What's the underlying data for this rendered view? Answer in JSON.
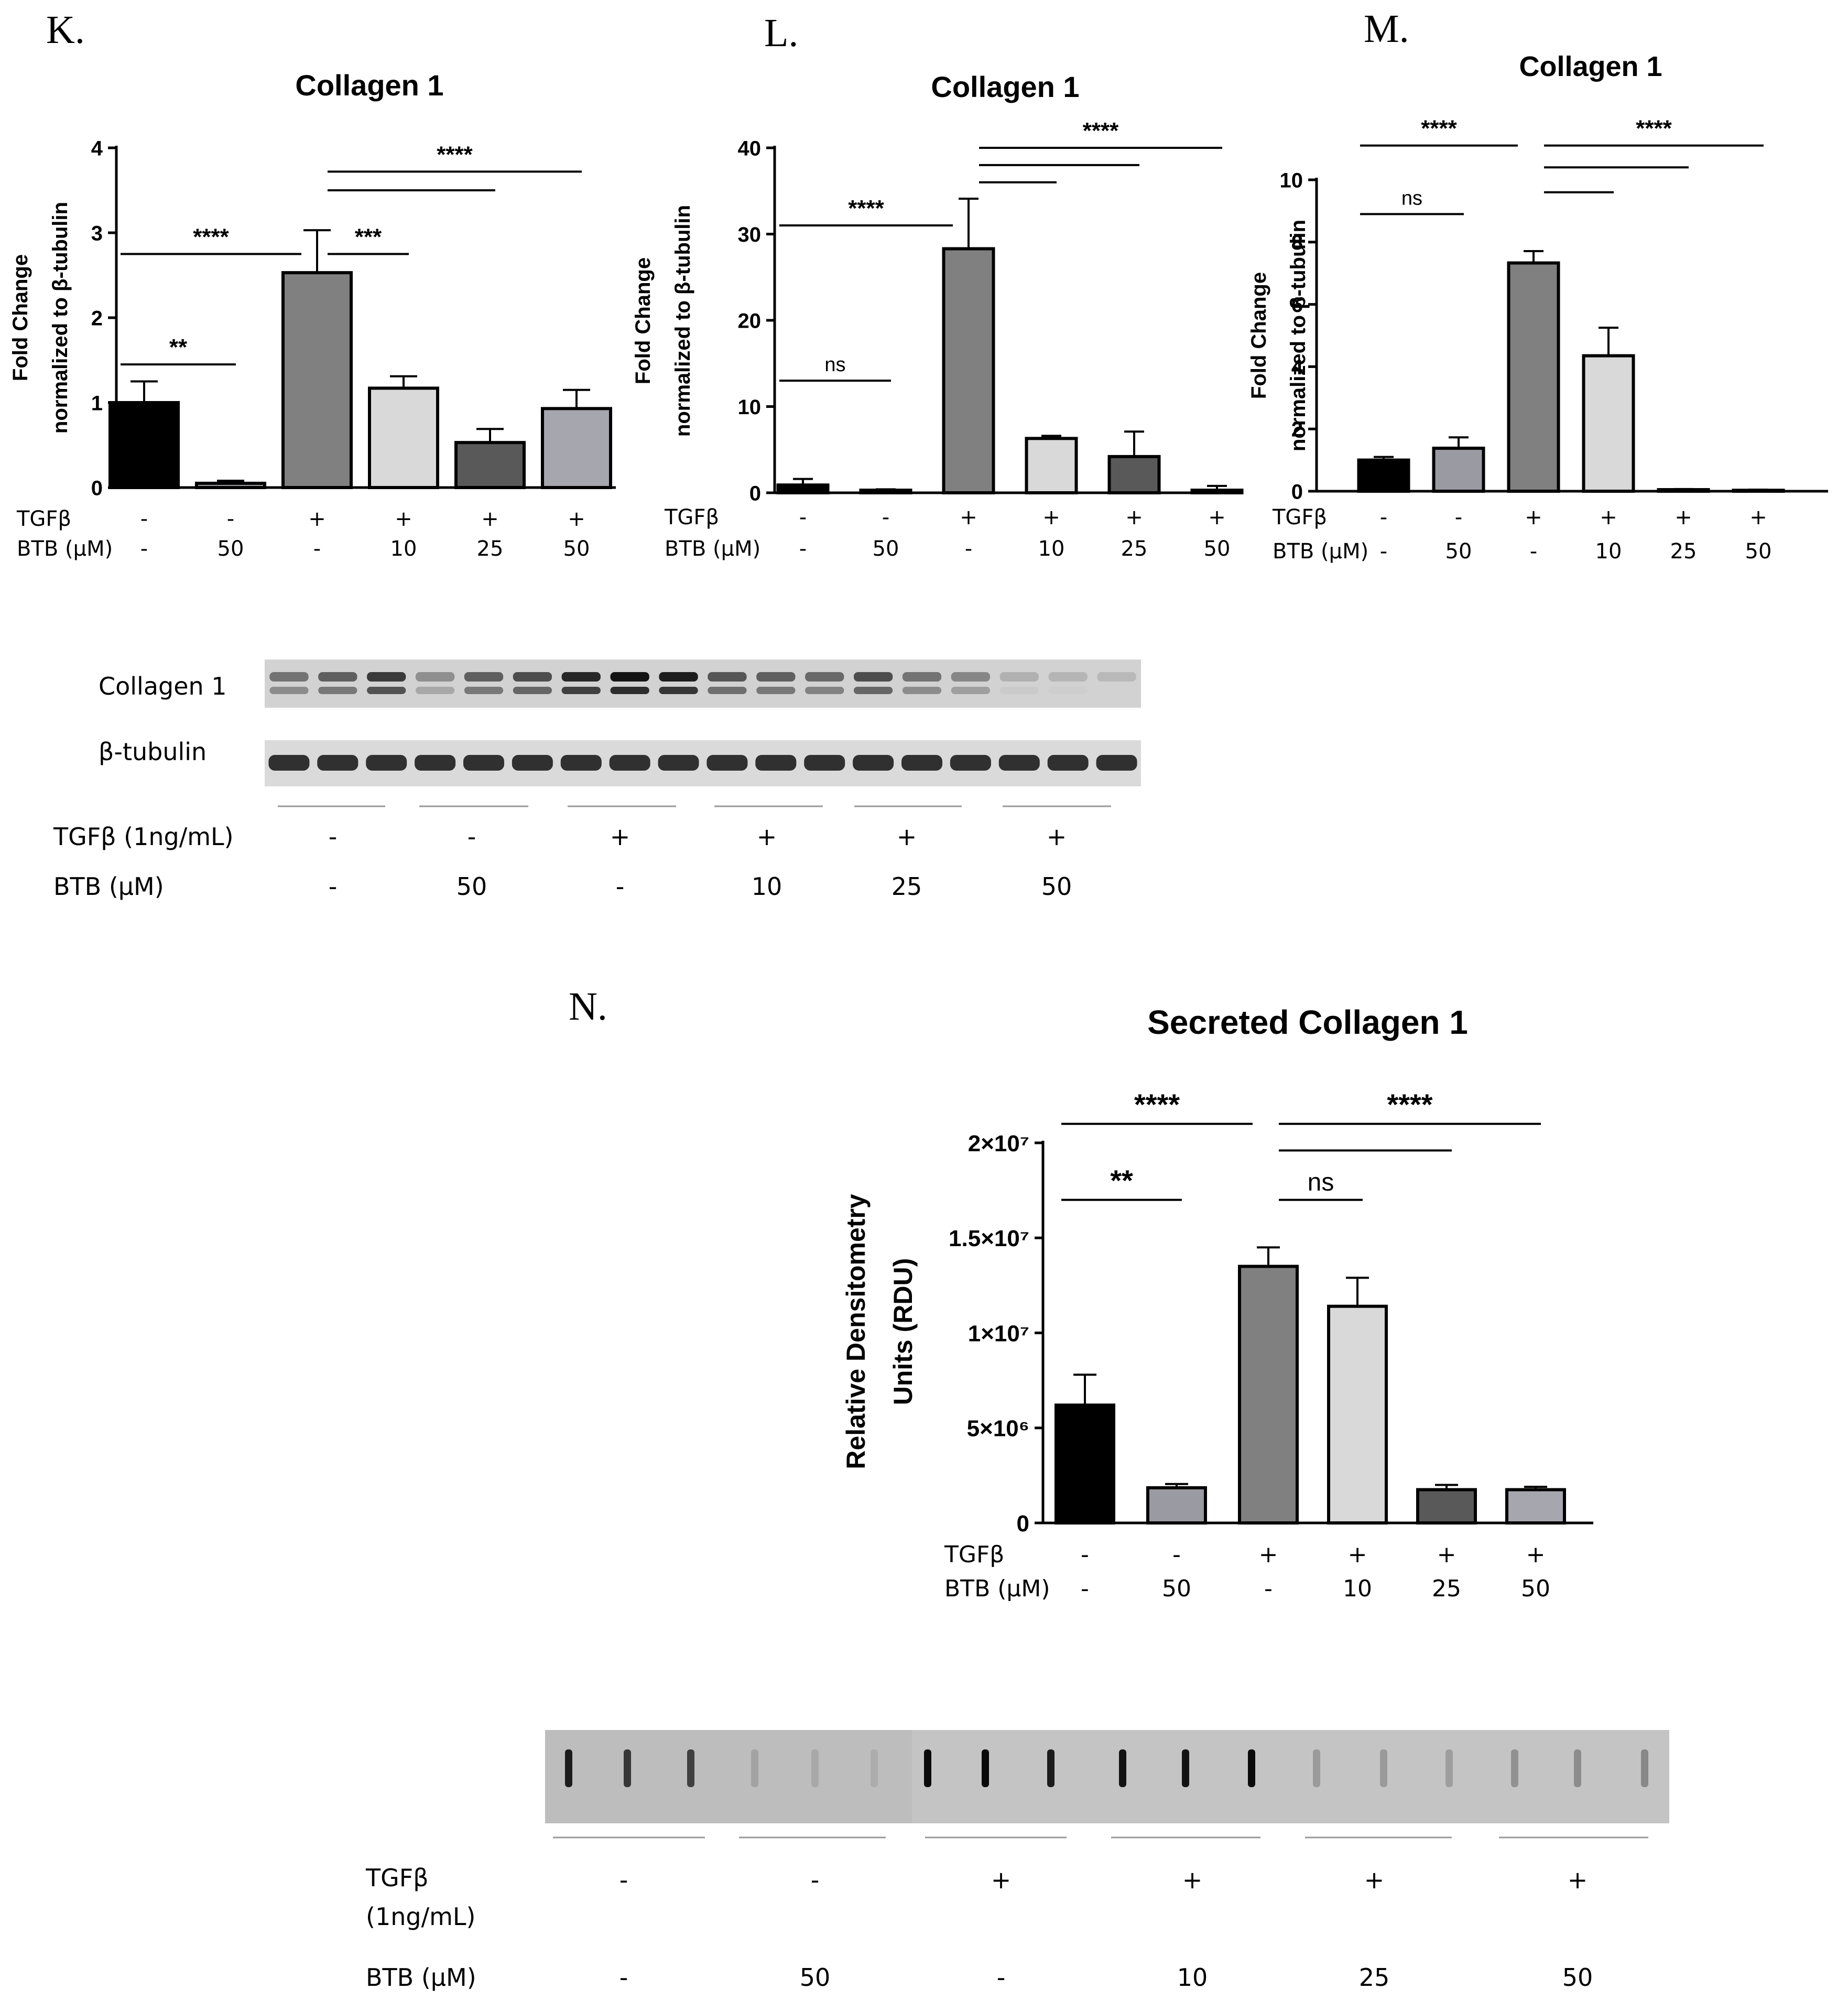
{
  "chart_data": [
    {
      "panel": "K.",
      "type": "bar",
      "title": "Collagen 1",
      "ylabel": [
        "Fold Change",
        "normalized to β-tubulin"
      ],
      "ylim": [
        0,
        4
      ],
      "yticks": [
        "0",
        "1",
        "2",
        "3",
        "4"
      ],
      "conditions": [
        {
          "name": "TGFβ",
          "values": [
            "-",
            "-",
            "+",
            "+",
            "+",
            "+"
          ]
        },
        {
          "name": "BTB (μM)",
          "values": [
            "-",
            "50",
            "-",
            "10",
            "25",
            "50"
          ]
        }
      ],
      "values": [
        1.0,
        0.05,
        2.53,
        1.17,
        0.53,
        0.93
      ],
      "errors": [
        0.25,
        0.03,
        0.5,
        0.14,
        0.16,
        0.22
      ],
      "bar_colors": [
        "#000000",
        "#9a9aa2",
        "#808080",
        "#d9d9d9",
        "#595959",
        "#a6a6ae"
      ],
      "significance": [
        {
          "from": 0,
          "to": 1,
          "y": 1.45,
          "label": "**"
        },
        {
          "from": 0,
          "to": 2,
          "y": 2.75,
          "label": "****"
        },
        {
          "from": 2,
          "to": 3,
          "y": 2.75,
          "label": "***"
        },
        {
          "from": 2,
          "to": 4,
          "y": 3.5,
          "label": ""
        },
        {
          "from": 2,
          "to": 5,
          "y": 3.72,
          "label": "****"
        }
      ]
    },
    {
      "panel": "L.",
      "type": "bar",
      "title": "Collagen 1",
      "ylabel": [
        "Fold Change",
        "normalized to β-tubulin"
      ],
      "ylim": [
        0,
        40
      ],
      "yticks": [
        "0",
        "10",
        "20",
        "30",
        "40"
      ],
      "conditions": [
        {
          "name": "TGFβ",
          "values": [
            "-",
            "-",
            "+",
            "+",
            "+",
            "+"
          ]
        },
        {
          "name": "BTB (μM)",
          "values": [
            "-",
            "50",
            "-",
            "10",
            "25",
            "50"
          ]
        }
      ],
      "values": [
        0.9,
        0.3,
        28.3,
        6.3,
        4.2,
        0.3
      ],
      "errors": [
        0.7,
        0.1,
        5.8,
        0.3,
        2.9,
        0.5
      ],
      "bar_colors": [
        "#000000",
        "#9a9aa2",
        "#808080",
        "#d9d9d9",
        "#595959",
        "#a6a6ae"
      ],
      "significance": [
        {
          "from": 0,
          "to": 1,
          "y": 13.0,
          "label": "ns"
        },
        {
          "from": 0,
          "to": 2,
          "y": 31.0,
          "label": "****"
        },
        {
          "from": 2,
          "to": 3,
          "y": 36.0,
          "label": ""
        },
        {
          "from": 2,
          "to": 4,
          "y": 38.0,
          "label": ""
        },
        {
          "from": 2,
          "to": 5,
          "y": 40.0,
          "label": "****"
        }
      ]
    },
    {
      "panel": "M.",
      "type": "bar",
      "title": "Collagen 1",
      "ylabel": [
        "Fold Change",
        "normalized to β-tubulin"
      ],
      "ylim": [
        0,
        10
      ],
      "yticks": [
        "0",
        "2",
        "4",
        "6",
        "8",
        "10"
      ],
      "conditions": [
        {
          "name": "TGFβ",
          "values": [
            "-",
            "-",
            "+",
            "+",
            "+",
            "+"
          ]
        },
        {
          "name": "BTB (μM)",
          "values": [
            "-",
            "50",
            "-",
            "10",
            "25",
            "50"
          ]
        }
      ],
      "values": [
        1.0,
        1.38,
        7.33,
        4.35,
        0.05,
        0.03
      ],
      "errors": [
        0.1,
        0.35,
        0.38,
        0.9,
        0.02,
        0.02
      ],
      "bar_colors": [
        "#000000",
        "#9a9aa2",
        "#808080",
        "#d9d9d9",
        "#595959",
        "#a6a6ae"
      ],
      "significance": [
        {
          "from": 0,
          "to": 1,
          "y": 8.9,
          "label": "ns"
        },
        {
          "from": 0,
          "to": 2,
          "y": 11.1,
          "label": "****"
        },
        {
          "from": 2,
          "to": 3,
          "y": 9.6,
          "label": ""
        },
        {
          "from": 2,
          "to": 4,
          "y": 10.4,
          "label": ""
        },
        {
          "from": 2,
          "to": 5,
          "y": 11.1,
          "label": "****"
        }
      ]
    },
    {
      "panel": "N.",
      "type": "bar",
      "title": "Secreted Collagen 1",
      "ylabel": [
        "Relative Densitometry",
        "Units (RDU)"
      ],
      "ylim": [
        0,
        20000000
      ],
      "yticks": [
        "0",
        "5×10⁶",
        "1×10⁷",
        "1.5×10⁷",
        "2×10⁷"
      ],
      "conditions": [
        {
          "name": "TGFβ",
          "values": [
            "-",
            "-",
            "+",
            "+",
            "+",
            "+"
          ]
        },
        {
          "name": "BTB (μM)",
          "values": [
            "-",
            "50",
            "-",
            "10",
            "25",
            "50"
          ]
        }
      ],
      "values": [
        6200000,
        1850000,
        13500000,
        11400000,
        1750000,
        1750000
      ],
      "errors": [
        1600000,
        200000,
        1000000,
        1500000,
        250000,
        150000
      ],
      "bar_colors": [
        "#000000",
        "#9a9aa2",
        "#808080",
        "#d9d9d9",
        "#595959",
        "#a6a6ae"
      ],
      "significance": [
        {
          "from": 0,
          "to": 1,
          "y": 17000000,
          "label": "**"
        },
        {
          "from": 0,
          "to": 2,
          "y": 21000000,
          "label": "****"
        },
        {
          "from": 2,
          "to": 3,
          "y": 17000000,
          "label": "ns"
        },
        {
          "from": 2,
          "to": 4,
          "y": 19600000,
          "label": ""
        },
        {
          "from": 2,
          "to": 5,
          "y": 21000000,
          "label": "****"
        }
      ]
    }
  ],
  "blot_upper": {
    "rows": [
      "Collagen 1",
      "β-tubulin"
    ],
    "conditions": [
      {
        "name": "TGFβ (1ng/mL)",
        "values": [
          "-",
          "-",
          "+",
          "+",
          "+",
          "+"
        ]
      },
      {
        "name": "BTB (μM)",
        "values": [
          "-",
          "50",
          "-",
          "10",
          "25",
          "50"
        ]
      }
    ],
    "collagen_intensity": [
      0.45,
      0.55,
      0.75,
      0.3,
      0.55,
      0.65,
      0.85,
      0.95,
      0.9,
      0.6,
      0.55,
      0.5,
      0.65,
      0.45,
      0.35,
      0.12,
      0.1,
      0.08
    ],
    "tubulin_intensity": [
      0.8,
      0.8,
      0.8,
      0.8,
      0.8,
      0.8,
      0.8,
      0.8,
      0.8,
      0.8,
      0.8,
      0.8,
      0.8,
      0.8,
      0.8,
      0.8,
      0.8,
      0.8
    ]
  },
  "blot_lower": {
    "conditions": [
      {
        "name": "TGFβ",
        "name_line2": "(1ng/mL)",
        "values": [
          "-",
          "-",
          "+",
          "+",
          "+",
          "+"
        ]
      },
      {
        "name": "BTB (μM)",
        "values": [
          "-",
          "50",
          "-",
          "10",
          "25",
          "50"
        ]
      }
    ],
    "slot_intensity": [
      0.9,
      0.75,
      0.7,
      0.15,
      0.12,
      0.1,
      1.0,
      1.0,
      0.9,
      0.95,
      0.95,
      1.0,
      0.2,
      0.2,
      0.18,
      0.25,
      0.28,
      0.3
    ]
  }
}
